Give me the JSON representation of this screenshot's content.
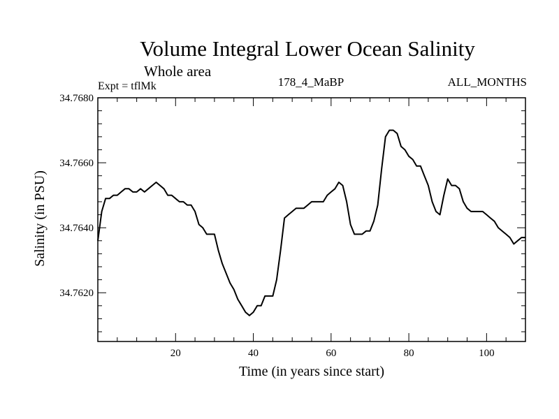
{
  "chart_data": {
    "type": "line",
    "title": "Volume Integral Lower Ocean Salinity",
    "subtitle": "Whole area",
    "experiment_label": "Expt = tflMk",
    "period_label": "178_4_MaBP",
    "months_label": "ALL_MONTHS",
    "xlabel": "Time (in years since start)",
    "ylabel": "Salinity (in PSU)",
    "xlim": [
      0,
      110
    ],
    "ylim": [
      34.7605,
      34.768
    ],
    "xticks": [
      20,
      40,
      60,
      80,
      100
    ],
    "xtick_labels": [
      "20",
      "40",
      "60",
      "80",
      "100"
    ],
    "yticks": [
      34.762,
      34.764,
      34.766,
      34.768
    ],
    "ytick_labels": [
      "34.7620",
      "34.7640",
      "34.7660",
      "34.7680"
    ],
    "grid": false,
    "line_color": "#000000",
    "series": [
      {
        "name": "salinity",
        "x": [
          0,
          1,
          2,
          3,
          4,
          5,
          6,
          7,
          8,
          9,
          10,
          11,
          12,
          13,
          14,
          15,
          16,
          17,
          18,
          19,
          20,
          21,
          22,
          23,
          24,
          25,
          26,
          27,
          28,
          29,
          30,
          31,
          32,
          33,
          34,
          35,
          36,
          37,
          38,
          39,
          40,
          41,
          42,
          43,
          44,
          45,
          46,
          47,
          48,
          49,
          50,
          51,
          52,
          53,
          54,
          55,
          56,
          57,
          58,
          59,
          60,
          61,
          62,
          63,
          64,
          65,
          66,
          67,
          68,
          69,
          70,
          71,
          72,
          73,
          74,
          75,
          76,
          77,
          78,
          79,
          80,
          81,
          82,
          83,
          84,
          85,
          86,
          87,
          88,
          89,
          90,
          91,
          92,
          93,
          94,
          95,
          96,
          97,
          98,
          99,
          100,
          101,
          102,
          103,
          104,
          105,
          106,
          107,
          108,
          109,
          110
        ],
        "values": [
          34.7636,
          34.7645,
          34.7649,
          34.7649,
          34.765,
          34.765,
          34.7651,
          34.7652,
          34.7652,
          34.7651,
          34.7651,
          34.7652,
          34.7651,
          34.7652,
          34.7653,
          34.7654,
          34.7653,
          34.7652,
          34.765,
          34.765,
          34.7649,
          34.7648,
          34.7648,
          34.7647,
          34.7647,
          34.7645,
          34.7641,
          34.764,
          34.7638,
          34.7638,
          34.7638,
          34.7633,
          34.7629,
          34.7626,
          34.7623,
          34.7621,
          34.7618,
          34.7616,
          34.7614,
          34.7613,
          34.7614,
          34.7616,
          34.7616,
          34.7619,
          34.7619,
          34.7619,
          34.7624,
          34.7633,
          34.7643,
          34.7644,
          34.7645,
          34.7646,
          34.7646,
          34.7646,
          34.7647,
          34.7648,
          34.7648,
          34.7648,
          34.7648,
          34.765,
          34.7651,
          34.7652,
          34.7654,
          34.7653,
          34.7648,
          34.7641,
          34.7638,
          34.7638,
          34.7638,
          34.7639,
          34.7639,
          34.7642,
          34.7647,
          34.7658,
          34.7668,
          34.767,
          34.767,
          34.7669,
          34.7665,
          34.7664,
          34.7662,
          34.7661,
          34.7659,
          34.7659,
          34.7656,
          34.7653,
          34.7648,
          34.7645,
          34.7644,
          34.765,
          34.7655,
          34.7653,
          34.7653,
          34.7652,
          34.7648,
          34.7646,
          34.7645,
          34.7645,
          34.7645,
          34.7645,
          34.7644,
          34.7643,
          34.7642,
          34.764,
          34.7639,
          34.7638,
          34.7637,
          34.7635,
          34.7636,
          34.7637,
          34.7637
        ]
      }
    ]
  }
}
